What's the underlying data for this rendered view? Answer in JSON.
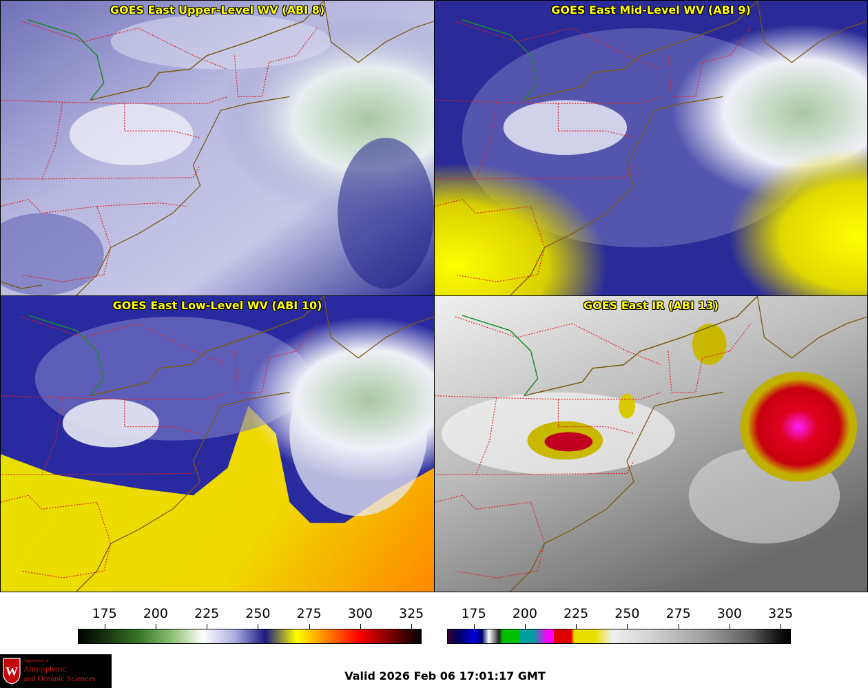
{
  "panels": [
    {
      "title": "GOES East Upper-Level WV (ABI 8)"
    },
    {
      "title": "GOES East Mid-Level WV (ABI 9)"
    },
    {
      "title": "GOES East Low-Level WV (ABI 10)"
    },
    {
      "title": "GOES East IR (ABI 13)"
    }
  ],
  "colorbar_wv": {
    "ticks": [
      "175",
      "200",
      "225",
      "250",
      "275",
      "300",
      "325"
    ],
    "tick_values": [
      175,
      200,
      225,
      250,
      275,
      300,
      325
    ],
    "range": [
      162,
      330
    ],
    "stops": [
      "#000000",
      "#1a3a10",
      "#3c7a28",
      "#8cc070",
      "#ffffff",
      "#b0b0e0",
      "#1a1a80",
      "#ffff00",
      "#ff8000",
      "#ff0000",
      "#800000",
      "#000000"
    ]
  },
  "colorbar_ir": {
    "ticks": [
      "175",
      "200",
      "225",
      "250",
      "275",
      "300",
      "325"
    ],
    "tick_values": [
      175,
      200,
      225,
      250,
      275,
      300,
      325
    ],
    "range": [
      162,
      330
    ]
  },
  "logo": {
    "dept": "Department of",
    "line1": "Atmospheric",
    "line2": "and Oceanic Sciences"
  },
  "valid_text": "Valid 2026 Feb 06 17:01:17 GMT"
}
